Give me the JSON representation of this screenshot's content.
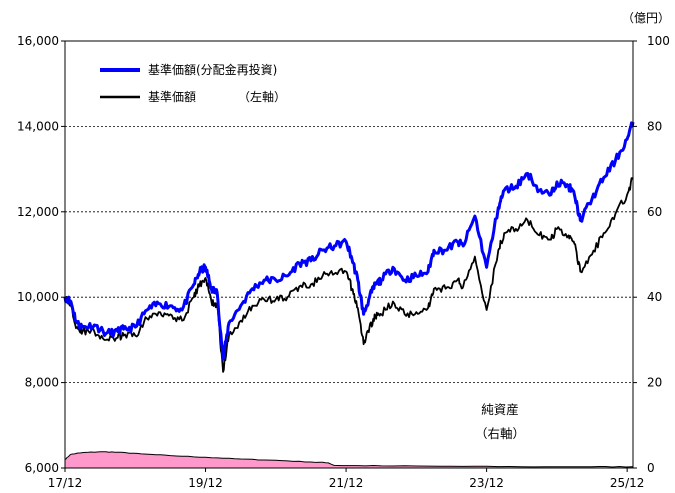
{
  "chart_data": {
    "type": "line",
    "x_tick_labels": [
      "17/12",
      "19/12",
      "21/12",
      "23/12",
      "25/12"
    ],
    "x_range": [
      "2017-12",
      "2026-01"
    ],
    "y_left": {
      "range": [
        6000,
        16000
      ],
      "tick_labels": [
        "6,000",
        "8,000",
        "10,000",
        "12,000",
        "14,000",
        "16,000"
      ],
      "tick_values": [
        6000,
        8000,
        10000,
        12000,
        14000,
        16000
      ]
    },
    "y_right": {
      "unit_label": "（億円）",
      "range": [
        0,
        100
      ],
      "tick_labels": [
        "0",
        "20",
        "40",
        "60",
        "80",
        "100"
      ],
      "tick_values": [
        0,
        20,
        40,
        60,
        80,
        100
      ]
    },
    "grid": "horizontal-dashed",
    "legend_placement": "top-left",
    "legend": [
      {
        "label": "基準価額(分配金再投資)",
        "color": "#0000ff"
      },
      {
        "label": "基準価額　　　　（左軸）",
        "color": "#000000"
      }
    ],
    "annotation": {
      "line1": "純資産",
      "line2": "（右軸）"
    },
    "series": [
      {
        "name": "基準価額(分配金再投資)",
        "color": "#0000ff",
        "axis": "left",
        "x": [
          "2017-12",
          "2018-01",
          "2018-02",
          "2018-03",
          "2018-05",
          "2018-07",
          "2018-09",
          "2018-10",
          "2018-12",
          "2019-02",
          "2019-04",
          "2019-06",
          "2019-08",
          "2019-10",
          "2019-11",
          "2019-12",
          "2020-01",
          "2020-02",
          "2020-03",
          "2020-04",
          "2020-06",
          "2020-08",
          "2020-10",
          "2020-12",
          "2021-02",
          "2021-04",
          "2021-06",
          "2021-08",
          "2021-10",
          "2021-12",
          "2022-01",
          "2022-02",
          "2022-03",
          "2022-04",
          "2022-05",
          "2022-06",
          "2022-08",
          "2022-10",
          "2022-12",
          "2023-02",
          "2023-03",
          "2023-05",
          "2023-07",
          "2023-08",
          "2023-10",
          "2023-12",
          "2024-02",
          "2024-03",
          "2024-05",
          "2024-07",
          "2024-09",
          "2024-11",
          "2024-12",
          "2025-02",
          "2025-03",
          "2025-04",
          "2025-06",
          "2025-08",
          "2025-10",
          "2025-12",
          "2026-01"
        ],
        "y": [
          10000,
          9900,
          9400,
          9300,
          9350,
          9150,
          9200,
          9250,
          9300,
          9700,
          9850,
          9800,
          9700,
          10300,
          10600,
          10700,
          10200,
          10100,
          8550,
          9400,
          9800,
          10200,
          10400,
          10400,
          10500,
          10800,
          10850,
          11100,
          11200,
          11300,
          10900,
          10400,
          9600,
          10000,
          10300,
          10400,
          10700,
          10400,
          10500,
          10600,
          11100,
          11100,
          11300,
          11200,
          11900,
          10700,
          12100,
          12500,
          12600,
          12900,
          12500,
          12400,
          12700,
          12600,
          12400,
          11800,
          12300,
          12800,
          13200,
          13700,
          14100
        ]
      },
      {
        "name": "基準価額",
        "color": "#000000",
        "axis": "left",
        "x": [
          "2017-12",
          "2018-01",
          "2018-02",
          "2018-03",
          "2018-05",
          "2018-07",
          "2018-09",
          "2018-10",
          "2018-12",
          "2019-02",
          "2019-04",
          "2019-06",
          "2019-08",
          "2019-10",
          "2019-11",
          "2019-12",
          "2020-01",
          "2020-02",
          "2020-03",
          "2020-04",
          "2020-06",
          "2020-08",
          "2020-10",
          "2020-12",
          "2021-02",
          "2021-04",
          "2021-06",
          "2021-08",
          "2021-10",
          "2021-12",
          "2022-01",
          "2022-02",
          "2022-03",
          "2022-04",
          "2022-05",
          "2022-06",
          "2022-08",
          "2022-10",
          "2022-12",
          "2023-02",
          "2023-03",
          "2023-05",
          "2023-07",
          "2023-08",
          "2023-10",
          "2023-12",
          "2024-02",
          "2024-03",
          "2024-05",
          "2024-07",
          "2024-09",
          "2024-11",
          "2024-12",
          "2025-02",
          "2025-03",
          "2025-04",
          "2025-06",
          "2025-08",
          "2025-10",
          "2025-12",
          "2026-01"
        ],
        "y": [
          10000,
          9800,
          9300,
          9200,
          9200,
          9000,
          9050,
          9100,
          9100,
          9500,
          9650,
          9600,
          9450,
          10000,
          10300,
          10450,
          9900,
          9800,
          8250,
          9100,
          9450,
          9800,
          9950,
          9950,
          10000,
          10250,
          10300,
          10500,
          10550,
          10600,
          10200,
          9750,
          8900,
          9300,
          9550,
          9600,
          9900,
          9600,
          9650,
          9750,
          10200,
          10200,
          10400,
          10250,
          10950,
          9700,
          11100,
          11500,
          11600,
          11800,
          11450,
          11350,
          11600,
          11450,
          11250,
          10600,
          11000,
          11500,
          11950,
          12400,
          12800
        ]
      },
      {
        "name": "純資産",
        "color": "#ff99cc",
        "axis": "right",
        "type": "area",
        "x": [
          "2017-12",
          "2018-01",
          "2018-03",
          "2018-06",
          "2018-09",
          "2019-01",
          "2019-06",
          "2019-12",
          "2020-06",
          "2020-12",
          "2021-06",
          "2021-09",
          "2021-10",
          "2022-06",
          "2023-06",
          "2024-06",
          "2025-06",
          "2026-01"
        ],
        "y": [
          2.0,
          3.2,
          3.6,
          3.8,
          3.7,
          3.3,
          2.9,
          2.5,
          2.1,
          1.8,
          1.4,
          1.2,
          0.6,
          0.5,
          0.4,
          0.3,
          0.3,
          0.3
        ]
      }
    ]
  }
}
